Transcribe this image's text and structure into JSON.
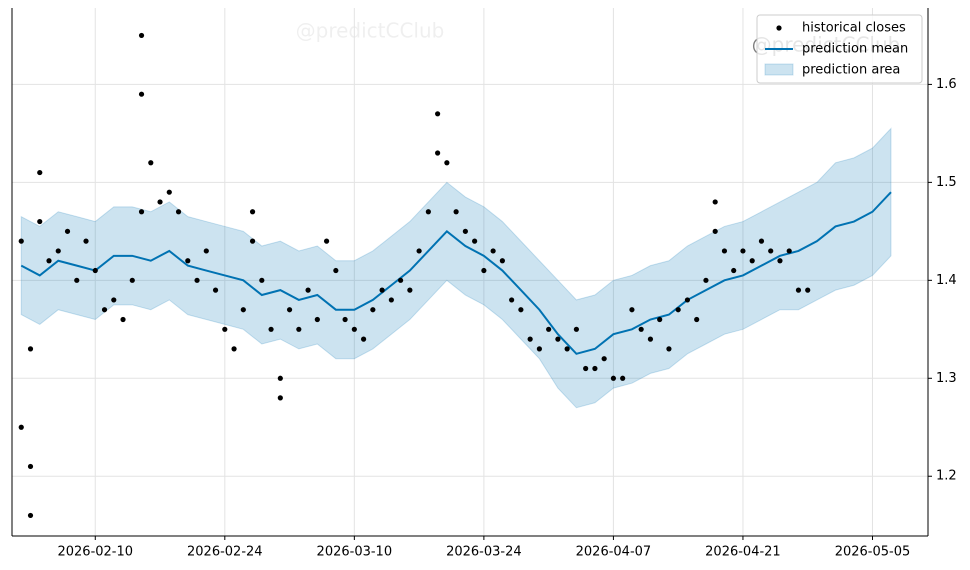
{
  "chart_data": {
    "type": "forecast",
    "watermark": "@predictCClub",
    "xlim": [
      "2026-02-01",
      "2026-05-11"
    ],
    "xticks": [
      "2026-02-10",
      "2026-02-24",
      "2026-03-10",
      "2026-03-24",
      "2026-04-07",
      "2026-04-21",
      "2026-05-05"
    ],
    "ylim": [
      1.139,
      1.678
    ],
    "yticks": [
      1.2,
      1.3,
      1.4,
      1.5,
      1.6
    ],
    "grid": true,
    "legend": "upper right",
    "series": [
      {
        "name": "historical closes",
        "type": "scatter",
        "color": "#000000",
        "x": [
          "2026-02-02",
          "2026-02-02",
          "2026-02-03",
          "2026-02-03",
          "2026-02-03",
          "2026-02-04",
          "2026-02-04",
          "2026-02-05",
          "2026-02-06",
          "2026-02-07",
          "2026-02-08",
          "2026-02-09",
          "2026-02-10",
          "2026-02-11",
          "2026-02-12",
          "2026-02-13",
          "2026-02-14",
          "2026-02-15",
          "2026-02-15",
          "2026-02-15",
          "2026-02-16",
          "2026-02-17",
          "2026-02-18",
          "2026-02-19",
          "2026-02-20",
          "2026-02-21",
          "2026-02-22",
          "2026-02-23",
          "2026-02-24",
          "2026-02-25",
          "2026-02-26",
          "2026-02-27",
          "2026-02-27",
          "2026-02-28",
          "2026-03-01",
          "2026-03-02",
          "2026-03-02",
          "2026-03-03",
          "2026-03-04",
          "2026-03-05",
          "2026-03-06",
          "2026-03-07",
          "2026-03-08",
          "2026-03-09",
          "2026-03-10",
          "2026-03-11",
          "2026-03-12",
          "2026-03-13",
          "2026-03-14",
          "2026-03-15",
          "2026-03-16",
          "2026-03-17",
          "2026-03-18",
          "2026-03-19",
          "2026-03-19",
          "2026-03-20",
          "2026-03-21",
          "2026-03-22",
          "2026-03-23",
          "2026-03-24",
          "2026-03-25",
          "2026-03-26",
          "2026-03-27",
          "2026-03-28",
          "2026-03-29",
          "2026-03-30",
          "2026-03-31",
          "2026-04-01",
          "2026-04-02",
          "2026-04-03",
          "2026-04-04",
          "2026-04-05",
          "2026-04-06",
          "2026-04-07",
          "2026-04-08",
          "2026-04-09",
          "2026-04-10",
          "2026-04-11",
          "2026-04-12",
          "2026-04-13",
          "2026-04-14",
          "2026-04-15",
          "2026-04-16",
          "2026-04-17",
          "2026-04-18",
          "2026-04-18",
          "2026-04-19",
          "2026-04-20",
          "2026-04-21",
          "2026-04-22",
          "2026-04-23",
          "2026-04-24",
          "2026-04-25",
          "2026-04-26",
          "2026-04-27",
          "2026-04-28"
        ],
        "values": [
          1.44,
          1.25,
          1.16,
          1.21,
          1.33,
          1.51,
          1.46,
          1.42,
          1.43,
          1.45,
          1.4,
          1.44,
          1.41,
          1.37,
          1.38,
          1.36,
          1.4,
          1.47,
          1.65,
          1.59,
          1.52,
          1.48,
          1.49,
          1.47,
          1.42,
          1.4,
          1.43,
          1.39,
          1.35,
          1.33,
          1.37,
          1.44,
          1.47,
          1.4,
          1.35,
          1.28,
          1.3,
          1.37,
          1.35,
          1.39,
          1.36,
          1.44,
          1.41,
          1.36,
          1.35,
          1.34,
          1.37,
          1.39,
          1.38,
          1.4,
          1.39,
          1.43,
          1.47,
          1.53,
          1.57,
          1.52,
          1.47,
          1.45,
          1.44,
          1.41,
          1.43,
          1.42,
          1.38,
          1.37,
          1.34,
          1.33,
          1.35,
          1.34,
          1.33,
          1.35,
          1.31,
          1.31,
          1.32,
          1.3,
          1.3,
          1.37,
          1.35,
          1.34,
          1.36,
          1.33,
          1.37,
          1.38,
          1.36,
          1.4,
          1.45,
          1.48,
          1.43,
          1.41,
          1.43,
          1.42,
          1.44,
          1.43,
          1.42,
          1.43,
          1.39,
          1.39
        ]
      },
      {
        "name": "prediction mean",
        "type": "line",
        "color": "#0072b2",
        "x": [
          "2026-02-02",
          "2026-02-04",
          "2026-02-06",
          "2026-02-08",
          "2026-02-10",
          "2026-02-12",
          "2026-02-14",
          "2026-02-16",
          "2026-02-18",
          "2026-02-20",
          "2026-02-22",
          "2026-02-24",
          "2026-02-26",
          "2026-02-28",
          "2026-03-02",
          "2026-03-04",
          "2026-03-06",
          "2026-03-08",
          "2026-03-10",
          "2026-03-12",
          "2026-03-14",
          "2026-03-16",
          "2026-03-18",
          "2026-03-20",
          "2026-03-22",
          "2026-03-24",
          "2026-03-26",
          "2026-03-28",
          "2026-03-30",
          "2026-04-01",
          "2026-04-03",
          "2026-04-05",
          "2026-04-07",
          "2026-04-09",
          "2026-04-11",
          "2026-04-13",
          "2026-04-15",
          "2026-04-17",
          "2026-04-19",
          "2026-04-21",
          "2026-04-23",
          "2026-04-25",
          "2026-04-27",
          "2026-04-29",
          "2026-05-01",
          "2026-05-03",
          "2026-05-05",
          "2026-05-07"
        ],
        "values": [
          1.415,
          1.405,
          1.42,
          1.415,
          1.41,
          1.425,
          1.425,
          1.42,
          1.43,
          1.415,
          1.41,
          1.405,
          1.4,
          1.385,
          1.39,
          1.38,
          1.385,
          1.37,
          1.37,
          1.38,
          1.395,
          1.41,
          1.43,
          1.45,
          1.435,
          1.425,
          1.41,
          1.39,
          1.37,
          1.345,
          1.325,
          1.33,
          1.345,
          1.35,
          1.36,
          1.365,
          1.38,
          1.39,
          1.4,
          1.405,
          1.415,
          1.425,
          1.43,
          1.44,
          1.455,
          1.46,
          1.47,
          1.49
        ]
      },
      {
        "name": "prediction area",
        "type": "area",
        "color": "#0072b2",
        "x": [
          "2026-02-02",
          "2026-02-04",
          "2026-02-06",
          "2026-02-08",
          "2026-02-10",
          "2026-02-12",
          "2026-02-14",
          "2026-02-16",
          "2026-02-18",
          "2026-02-20",
          "2026-02-22",
          "2026-02-24",
          "2026-02-26",
          "2026-02-28",
          "2026-03-02",
          "2026-03-04",
          "2026-03-06",
          "2026-03-08",
          "2026-03-10",
          "2026-03-12",
          "2026-03-14",
          "2026-03-16",
          "2026-03-18",
          "2026-03-20",
          "2026-03-22",
          "2026-03-24",
          "2026-03-26",
          "2026-03-28",
          "2026-03-30",
          "2026-04-01",
          "2026-04-03",
          "2026-04-05",
          "2026-04-07",
          "2026-04-09",
          "2026-04-11",
          "2026-04-13",
          "2026-04-15",
          "2026-04-17",
          "2026-04-19",
          "2026-04-21",
          "2026-04-23",
          "2026-04-25",
          "2026-04-27",
          "2026-04-29",
          "2026-05-01",
          "2026-05-03",
          "2026-05-05",
          "2026-05-07"
        ],
        "upper": [
          1.465,
          1.455,
          1.47,
          1.465,
          1.46,
          1.475,
          1.475,
          1.47,
          1.48,
          1.465,
          1.46,
          1.455,
          1.45,
          1.435,
          1.44,
          1.43,
          1.435,
          1.42,
          1.42,
          1.43,
          1.445,
          1.46,
          1.48,
          1.5,
          1.485,
          1.475,
          1.46,
          1.44,
          1.42,
          1.4,
          1.38,
          1.385,
          1.4,
          1.405,
          1.415,
          1.42,
          1.435,
          1.445,
          1.455,
          1.46,
          1.47,
          1.48,
          1.49,
          1.5,
          1.52,
          1.525,
          1.535,
          1.555
        ],
        "lower": [
          1.365,
          1.355,
          1.37,
          1.365,
          1.36,
          1.375,
          1.375,
          1.37,
          1.38,
          1.365,
          1.36,
          1.355,
          1.35,
          1.335,
          1.34,
          1.33,
          1.335,
          1.32,
          1.32,
          1.33,
          1.345,
          1.36,
          1.38,
          1.4,
          1.385,
          1.375,
          1.36,
          1.34,
          1.32,
          1.29,
          1.27,
          1.275,
          1.29,
          1.295,
          1.305,
          1.31,
          1.325,
          1.335,
          1.345,
          1.35,
          1.36,
          1.37,
          1.37,
          1.38,
          1.39,
          1.395,
          1.405,
          1.425
        ]
      }
    ]
  }
}
